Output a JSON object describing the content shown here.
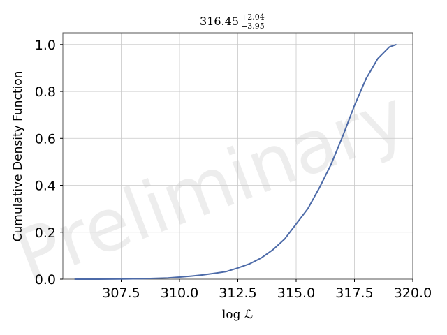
{
  "chart_data": {
    "type": "line",
    "title": {
      "value": "316.45",
      "upper": "+2.04",
      "lower": "−3.95"
    },
    "xlabel": "log ℒ",
    "ylabel": "Cumulative Density Function",
    "watermark": "Preliminary",
    "xlim": [
      305.0,
      320.0
    ],
    "ylim": [
      0.0,
      1.05
    ],
    "x_ticks": [
      307.5,
      310.0,
      312.5,
      315.0,
      317.5,
      320.0
    ],
    "x_tick_labels": [
      "307.5",
      "310.0",
      "312.5",
      "315.0",
      "317.5",
      "320.0"
    ],
    "y_ticks": [
      0.0,
      0.2,
      0.4,
      0.6,
      0.8,
      1.0
    ],
    "y_tick_labels": [
      "0.0",
      "0.2",
      "0.4",
      "0.6",
      "0.8",
      "1.0"
    ],
    "grid": true,
    "series": [
      {
        "color": "#4c6aa8",
        "points": [
          [
            305.5,
            0.0
          ],
          [
            306.5,
            0.0
          ],
          [
            307.5,
            0.001
          ],
          [
            308.5,
            0.002
          ],
          [
            309.5,
            0.005
          ],
          [
            310.0,
            0.009
          ],
          [
            310.5,
            0.013
          ],
          [
            311.0,
            0.018
          ],
          [
            311.5,
            0.025
          ],
          [
            312.0,
            0.032
          ],
          [
            312.5,
            0.048
          ],
          [
            313.0,
            0.065
          ],
          [
            313.5,
            0.09
          ],
          [
            314.0,
            0.125
          ],
          [
            314.5,
            0.17
          ],
          [
            315.0,
            0.235
          ],
          [
            315.5,
            0.3
          ],
          [
            316.0,
            0.39
          ],
          [
            316.5,
            0.49
          ],
          [
            317.0,
            0.61
          ],
          [
            317.5,
            0.74
          ],
          [
            318.0,
            0.855
          ],
          [
            318.5,
            0.94
          ],
          [
            319.0,
            0.99
          ],
          [
            319.3,
            1.0
          ]
        ]
      }
    ]
  }
}
